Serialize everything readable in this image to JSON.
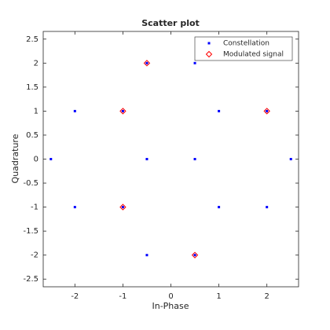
{
  "chart_data": {
    "type": "scatter",
    "title": "Scatter plot",
    "x_label": "In-Phase",
    "y_label": "Quadrature",
    "xlim": [
      -2.66,
      2.66
    ],
    "ylim": [
      -2.66,
      2.66
    ],
    "xticks": [
      -2,
      -1,
      0,
      1,
      2
    ],
    "yticks": [
      -2.5,
      -2,
      -1.5,
      -1,
      -0.5,
      0,
      0.5,
      1,
      1.5,
      2,
      2.5
    ],
    "legend_position": "upper-right",
    "series": [
      {
        "name": "Constellation",
        "color": "#0000ff",
        "marker": "dot",
        "x": [
          -2.5,
          2.5,
          -2,
          -2,
          2,
          2,
          -1,
          -1,
          -0.5,
          0.5,
          -0.5,
          0.5,
          1,
          1,
          -0.5,
          0.5
        ],
        "y": [
          0,
          0,
          1,
          -1,
          1,
          -1,
          1,
          -1,
          2,
          2,
          0,
          0,
          1,
          -1,
          -2,
          -2
        ]
      },
      {
        "name": "Modulated signal",
        "color": "#ff0000",
        "marker": "diamond",
        "x": [
          -0.5,
          -1,
          2,
          -1,
          0.5
        ],
        "y": [
          2,
          1,
          1,
          -1,
          -2
        ]
      }
    ]
  }
}
